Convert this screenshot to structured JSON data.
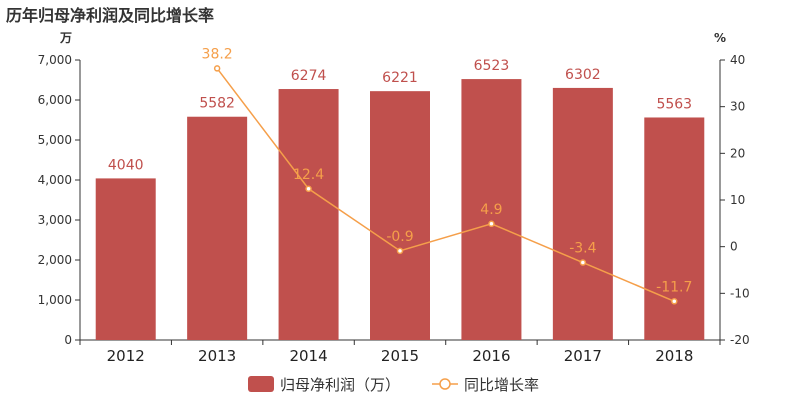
{
  "title": "历年归母净利润及同比增长率",
  "chart_data": {
    "type": "bar",
    "title": "历年归母净利润及同比增长率",
    "categories": [
      "2012",
      "2013",
      "2014",
      "2015",
      "2016",
      "2017",
      "2018"
    ],
    "series": [
      {
        "name": "归母净利润（万）",
        "type": "bar",
        "axis": "left",
        "color": "#c0504d",
        "values": [
          4040,
          5582,
          6274,
          6221,
          6523,
          6302,
          5563
        ],
        "labels": [
          "4040",
          "5582",
          "6274",
          "6221",
          "6523",
          "6302",
          "5563"
        ]
      },
      {
        "name": "同比增长率",
        "type": "line",
        "axis": "right",
        "color": "#f59f4a",
        "values": [
          null,
          38.2,
          12.4,
          -0.9,
          4.9,
          -3.4,
          -11.7
        ],
        "labels": [
          "",
          "38.2",
          "12.4",
          "-0.9",
          "4.9",
          "-3.4",
          "-11.7"
        ]
      }
    ],
    "y_left": {
      "unit": "万",
      "range": [
        0,
        7000
      ],
      "ticks": [
        0,
        1000,
        2000,
        3000,
        4000,
        5000,
        6000,
        7000
      ],
      "tick_labels": [
        "0",
        "1,000",
        "2,000",
        "3,000",
        "4,000",
        "5,000",
        "6,000",
        "7,000"
      ]
    },
    "y_right": {
      "unit": "%",
      "range": [
        -20,
        40
      ],
      "ticks": [
        -20,
        -10,
        0,
        10,
        20,
        30,
        40
      ],
      "tick_labels": [
        "-20",
        "-10",
        "0",
        "10",
        "20",
        "30",
        "40"
      ]
    },
    "grid": false,
    "legend_position": "bottom-center"
  }
}
